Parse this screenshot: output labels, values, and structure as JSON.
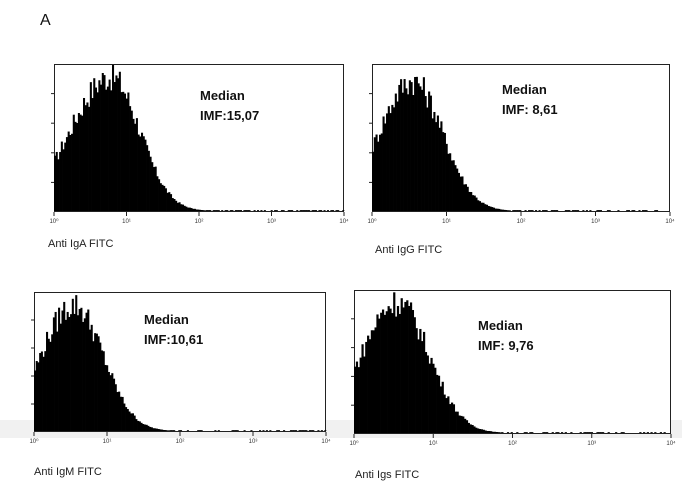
{
  "figure_label": "A",
  "chart_data": [
    {
      "type": "histogram",
      "xlabel": "Anti IgA FITC",
      "x_scale": "log",
      "xlim": [
        1,
        10000
      ],
      "x_tick_labels": [
        "10⁰",
        "10¹",
        "10²",
        "10³",
        "10⁴"
      ],
      "annotation": [
        "Median",
        "IMF:15,07"
      ],
      "peak_x": 6,
      "peak_height": 0.93,
      "spread_left": 0.55,
      "spread_right": 0.4
    },
    {
      "type": "histogram",
      "xlabel": "Anti IgG FITC",
      "x_scale": "log",
      "xlim": [
        1,
        10000
      ],
      "x_tick_labels": [
        "10⁰",
        "10¹",
        "10²",
        "10³",
        "10⁴"
      ],
      "annotation": [
        "Median",
        "IMF: 8,61"
      ],
      "peak_x": 3.5,
      "peak_height": 0.9,
      "spread_left": 0.45,
      "spread_right": 0.4
    },
    {
      "type": "histogram",
      "xlabel": "Anti IgM FITC",
      "x_scale": "log",
      "xlim": [
        1,
        10000
      ],
      "x_tick_labels": [
        "10⁰",
        "10¹",
        "10²",
        "10³",
        "10⁴"
      ],
      "annotation": [
        "Median",
        "IMF:10,61"
      ],
      "peak_x": 3.5,
      "peak_height": 0.92,
      "spread_left": 0.45,
      "spread_right": 0.4
    },
    {
      "type": "histogram",
      "xlabel": "Anti Igs FITC",
      "x_scale": "log",
      "xlim": [
        1,
        10000
      ],
      "x_tick_labels": [
        "10⁰",
        "10¹",
        "10²",
        "10³",
        "10⁴"
      ],
      "annotation": [
        "Median",
        "IMF: 9,76"
      ],
      "peak_x": 3.5,
      "peak_height": 0.93,
      "spread_left": 0.45,
      "spread_right": 0.4
    }
  ]
}
